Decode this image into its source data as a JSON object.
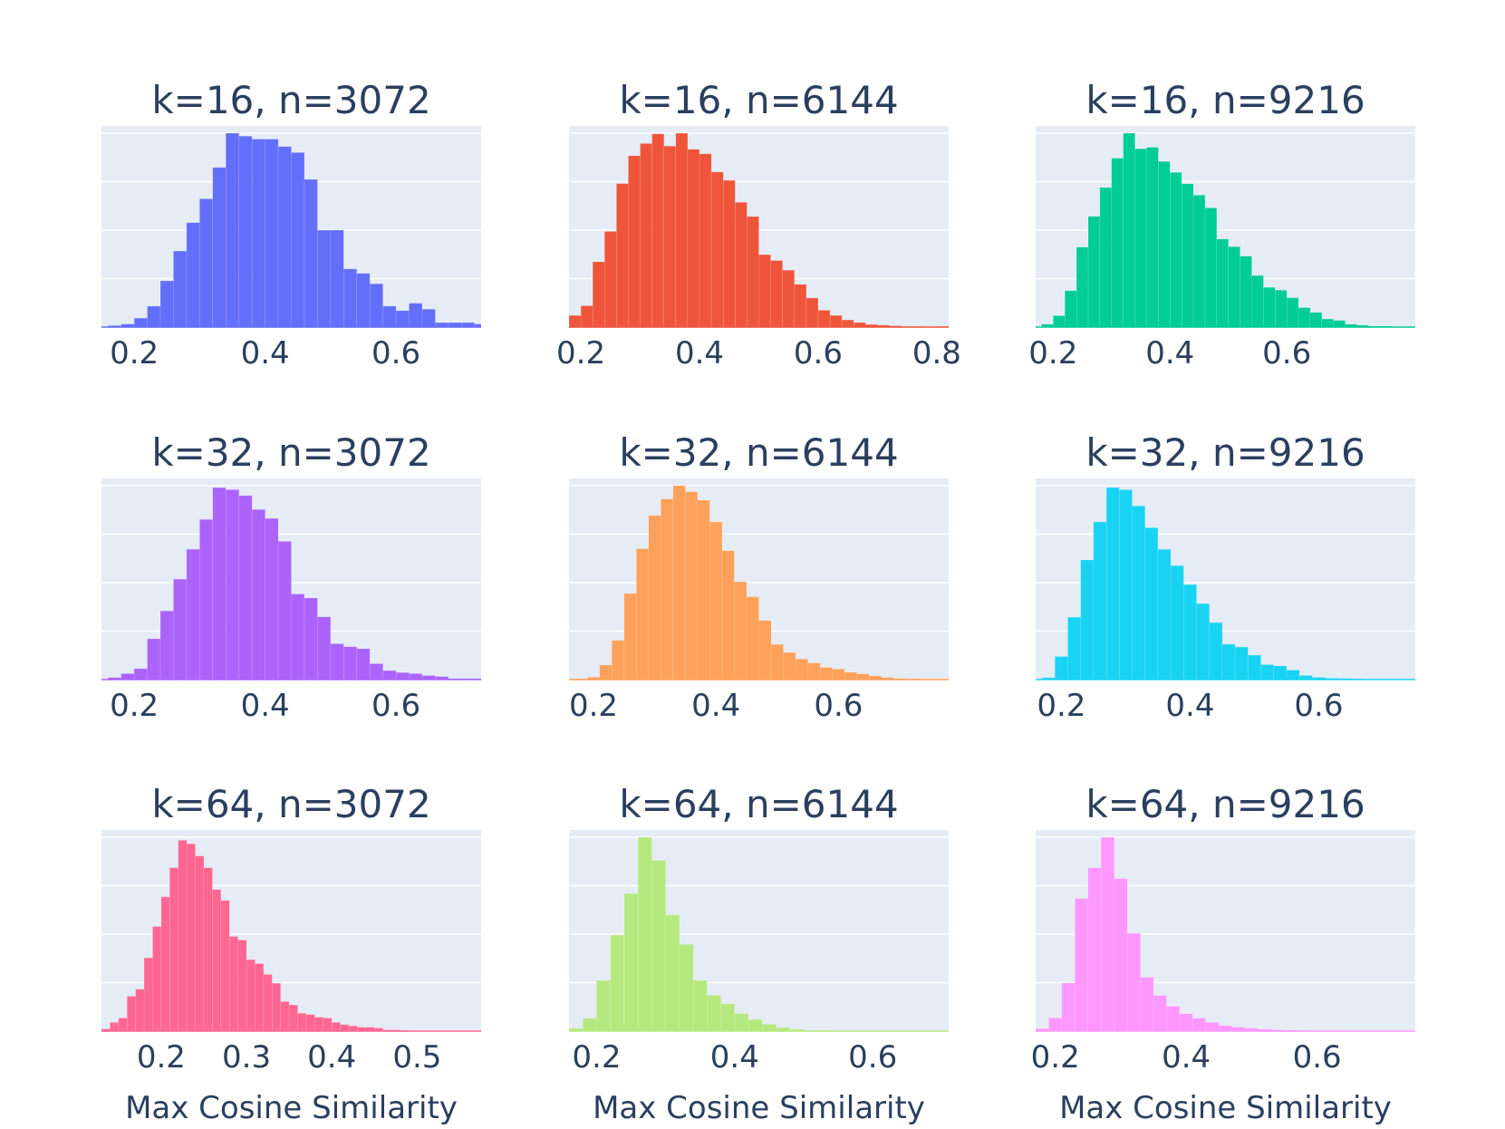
{
  "chart_data": [
    {
      "type": "bar",
      "title": "k=16, n=3072",
      "xlabel": "",
      "color": "#636efa",
      "bin_start": 0.16,
      "bin_width": 0.02,
      "xlim": [
        0.15,
        0.73
      ],
      "xticks": [
        0.2,
        0.4,
        0.6
      ],
      "ymax": 130,
      "values": [
        1,
        2,
        6,
        14,
        31,
        51,
        70,
        86,
        107,
        130,
        128,
        126,
        126,
        121,
        117,
        99,
        65,
        65,
        39,
        36,
        29,
        14,
        11,
        16,
        12,
        3,
        3,
        3,
        2,
        1,
        0
      ]
    },
    {
      "type": "bar",
      "title": "k=16, n=6144",
      "xlabel": "",
      "color": "#ef553b",
      "bin_start": 0.18,
      "bin_width": 0.02,
      "xlim": [
        0.18,
        0.82
      ],
      "xticks": [
        0.2,
        0.4,
        0.6,
        0.8
      ],
      "ymax": 300,
      "values": [
        18,
        33,
        101,
        148,
        222,
        265,
        284,
        299,
        280,
        300,
        275,
        268,
        240,
        227,
        193,
        171,
        112,
        103,
        88,
        66,
        45,
        26,
        18,
        11,
        7,
        4,
        3,
        2,
        1,
        1,
        0,
        1
      ]
    },
    {
      "type": "bar",
      "title": "k=16, n=9216",
      "xlabel": "",
      "color": "#00cc96",
      "bin_start": 0.18,
      "bin_width": 0.02,
      "xlim": [
        0.17,
        0.82
      ],
      "xticks": [
        0.2,
        0.4,
        0.6
      ],
      "ymax": 410,
      "values": [
        6,
        24,
        77,
        169,
        234,
        295,
        357,
        410,
        377,
        380,
        350,
        327,
        303,
        279,
        252,
        186,
        170,
        150,
        109,
        84,
        78,
        62,
        41,
        31,
        17,
        14,
        6,
        4,
        2,
        2,
        1,
        0
      ]
    },
    {
      "type": "bar",
      "title": "k=32, n=3072",
      "xlabel": "",
      "color": "#ab63fa",
      "bin_start": 0.16,
      "bin_width": 0.02,
      "xlim": [
        0.15,
        0.73
      ],
      "xticks": [
        0.2,
        0.4,
        0.6
      ],
      "ymax": 195,
      "values": [
        2,
        6,
        11,
        41,
        69,
        101,
        131,
        161,
        193,
        191,
        185,
        171,
        162,
        139,
        86,
        82,
        63,
        36,
        33,
        31,
        16,
        9,
        7,
        6,
        4,
        3,
        1,
        1,
        1
      ]
    },
    {
      "type": "bar",
      "title": "k=32, n=6144",
      "xlabel": "",
      "color": "#ffa15a",
      "bin_start": 0.17,
      "bin_width": 0.02,
      "xlim": [
        0.16,
        0.78
      ],
      "xticks": [
        0.2,
        0.4,
        0.6
      ],
      "ymax": 480,
      "values": [
        2,
        6,
        36,
        97,
        213,
        324,
        406,
        447,
        480,
        465,
        444,
        390,
        319,
        242,
        205,
        146,
        87,
        67,
        51,
        41,
        30,
        26,
        18,
        14,
        9,
        5,
        3,
        2,
        1,
        1
      ]
    },
    {
      "type": "bar",
      "title": "k=32, n=9216",
      "xlabel": "",
      "color": "#19d3f3",
      "bin_start": 0.17,
      "bin_width": 0.02,
      "xlim": [
        0.16,
        0.75
      ],
      "xticks": [
        0.2,
        0.4,
        0.6
      ],
      "ymax": 715,
      "values": [
        7,
        85,
        230,
        441,
        581,
        708,
        700,
        640,
        560,
        480,
        420,
        350,
        280,
        210,
        130,
        120,
        90,
        55,
        50,
        35,
        15,
        8,
        5,
        4,
        3,
        2,
        1
      ]
    },
    {
      "type": "bar",
      "title": "k=64, n=3072",
      "xlabel": "Max Cosine Similarity",
      "color": "#ff6692",
      "bin_start": 0.13,
      "bin_width": 0.01,
      "xlim": [
        0.13,
        0.575
      ],
      "xticks": [
        0.2,
        0.3,
        0.4,
        0.5
      ],
      "ymax": 445,
      "values": [
        5,
        20,
        30,
        80,
        96,
        168,
        240,
        308,
        375,
        438,
        430,
        402,
        375,
        325,
        300,
        217,
        209,
        164,
        155,
        130,
        110,
        68,
        60,
        41,
        38,
        32,
        30,
        20,
        15,
        12,
        9,
        9,
        7,
        3,
        3,
        2,
        1,
        1,
        1,
        1,
        1,
        1,
        1,
        0
      ]
    },
    {
      "type": "bar",
      "title": "k=64, n=6144",
      "xlabel": "Max Cosine Similarity",
      "color": "#b6e880",
      "bin_start": 0.16,
      "bin_width": 0.02,
      "xlim": [
        0.16,
        0.71
      ],
      "xticks": [
        0.2,
        0.4,
        0.6
      ],
      "ymax": 1050,
      "values": [
        15,
        70,
        275,
        520,
        745,
        1050,
        925,
        630,
        470,
        275,
        195,
        148,
        95,
        63,
        37,
        19,
        10,
        4,
        3,
        2,
        1,
        1,
        0,
        0,
        0,
        1
      ]
    },
    {
      "type": "bar",
      "title": "k=64, n=9216",
      "xlabel": "Max Cosine Similarity",
      "color": "#ff97ff",
      "bin_start": 0.17,
      "bin_width": 0.02,
      "xlim": [
        0.17,
        0.75
      ],
      "xticks": [
        0.2,
        0.4,
        0.6
      ],
      "ymax": 1170,
      "values": [
        15,
        80,
        290,
        800,
        985,
        1170,
        920,
        590,
        325,
        215,
        150,
        105,
        78,
        52,
        34,
        24,
        18,
        12,
        8,
        6,
        4,
        3,
        2,
        1,
        1,
        1
      ]
    }
  ]
}
